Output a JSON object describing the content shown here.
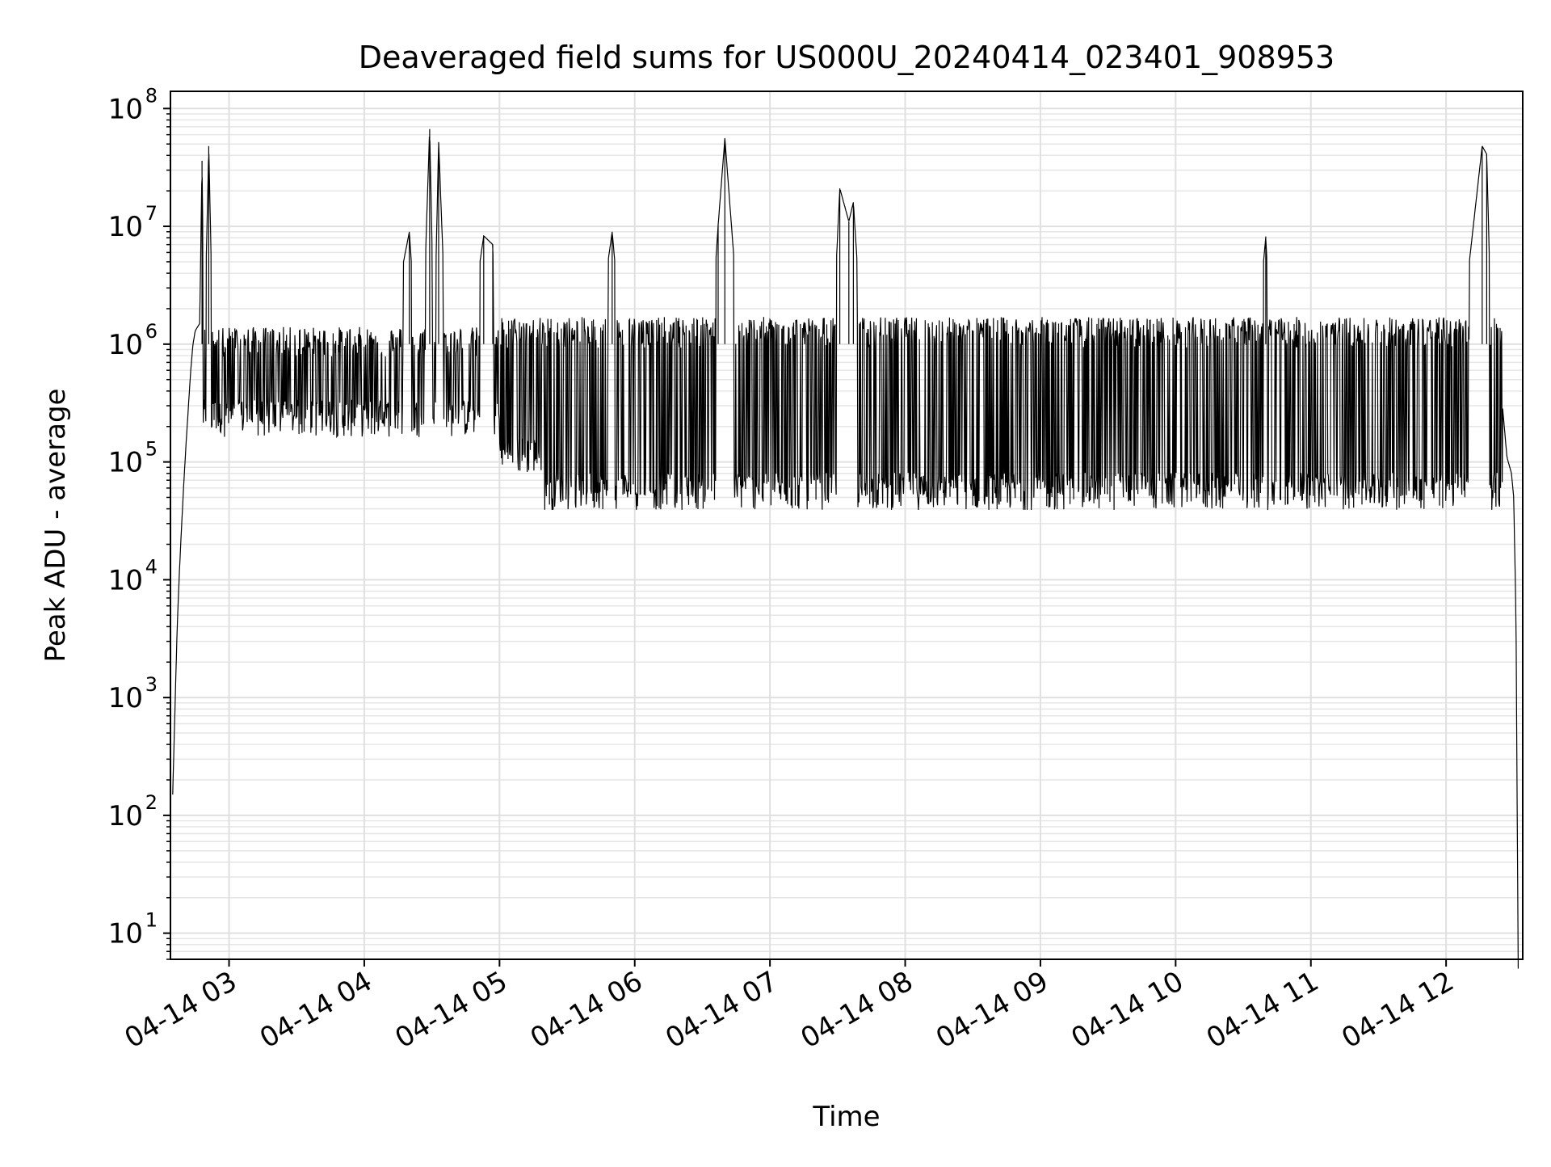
{
  "chart_data": {
    "type": "line",
    "title": "Deaveraged field sums for US000U_20240414_023401_908953",
    "xlabel": "Time",
    "ylabel": "Peak ADU - average",
    "yscale": "log",
    "ylim": [
      6,
      140000000
    ],
    "xlim": [
      "2024-04-14 02:34",
      "2024-04-14 12:34"
    ],
    "grid": true,
    "x_tick_labels": [
      "04-14 03",
      "04-14 04",
      "04-14 05",
      "04-14 06",
      "04-14 07",
      "04-14 08",
      "04-14 09",
      "04-14 10",
      "04-14 11",
      "04-14 12"
    ],
    "y_tick_labels": [
      {
        "base": "10",
        "exp": "1"
      },
      {
        "base": "10",
        "exp": "2"
      },
      {
        "base": "10",
        "exp": "3"
      },
      {
        "base": "10",
        "exp": "4"
      },
      {
        "base": "10",
        "exp": "5"
      },
      {
        "base": "10",
        "exp": "6"
      },
      {
        "base": "10",
        "exp": "7"
      },
      {
        "base": "10",
        "exp": "8"
      }
    ],
    "series": [
      {
        "color": "#000000",
        "points": [
          [
            "02:35",
            150
          ],
          [
            "02:36",
            800
          ],
          [
            "02:37",
            4000
          ],
          [
            "02:38",
            12000
          ],
          [
            "02:39",
            30000
          ],
          [
            "02:40",
            70000
          ],
          [
            "02:41",
            150000
          ],
          [
            "02:42",
            300000
          ],
          [
            "02:43",
            600000
          ],
          [
            "02:44",
            1000000
          ],
          [
            "02:45",
            1300000
          ],
          [
            "02:47",
            1500000
          ],
          [
            "02:48",
            36000000
          ],
          [
            "02:49",
            900000
          ],
          [
            "02:51",
            48000000
          ],
          [
            "02:53",
            700000
          ],
          [
            "02:57",
            900000
          ],
          [
            "03:00",
            300000
          ],
          [
            "03:05",
            2800000
          ],
          [
            "03:08",
            900000
          ],
          [
            "03:15",
            500000
          ],
          [
            "03:25",
            800000
          ],
          [
            "03:35",
            1900000
          ],
          [
            "03:45",
            600000
          ],
          [
            "03:55",
            400000
          ],
          [
            "04:05",
            300000
          ],
          [
            "04:20",
            9000000
          ],
          [
            "04:25",
            300000
          ],
          [
            "04:29",
            67000000
          ],
          [
            "04:31",
            1000000
          ],
          [
            "04:33",
            52000000
          ],
          [
            "04:38",
            150000
          ],
          [
            "04:45",
            600000
          ],
          [
            "04:48",
            1800000
          ],
          [
            "04:53",
            8300000
          ],
          [
            "04:57",
            7000000
          ],
          [
            "05:00",
            90000
          ],
          [
            "05:10",
            65000
          ],
          [
            "05:20",
            1000000
          ],
          [
            "05:25",
            50000
          ],
          [
            "05:35",
            80000
          ],
          [
            "05:50",
            9000000
          ],
          [
            "06:00",
            60000
          ],
          [
            "06:15",
            75000
          ],
          [
            "06:30",
            80000
          ],
          [
            "06:37",
            10200000
          ],
          [
            "06:40",
            56000000
          ],
          [
            "06:45",
            3000000
          ],
          [
            "06:55",
            70000
          ],
          [
            "07:10",
            60000
          ],
          [
            "07:25",
            80000
          ],
          [
            "07:31",
            21000000
          ],
          [
            "07:35",
            11000000
          ],
          [
            "07:37",
            16000000
          ],
          [
            "07:45",
            60000
          ],
          [
            "08:00",
            50000
          ],
          [
            "08:15",
            40000
          ],
          [
            "08:30",
            50000
          ],
          [
            "08:45",
            45000
          ],
          [
            "09:00",
            45000
          ],
          [
            "09:15",
            50000
          ],
          [
            "09:30",
            60000
          ],
          [
            "09:45",
            55000
          ],
          [
            "10:00",
            50000
          ],
          [
            "10:15",
            55000
          ],
          [
            "10:30",
            60000
          ],
          [
            "10:40",
            8200000
          ],
          [
            "10:45",
            60000
          ],
          [
            "11:00",
            65000
          ],
          [
            "11:15",
            70000
          ],
          [
            "11:30",
            80000
          ],
          [
            "11:45",
            200000
          ],
          [
            "12:05",
            600000
          ],
          [
            "12:16",
            48000000
          ],
          [
            "12:18",
            41000000
          ],
          [
            "12:20",
            1400000
          ],
          [
            "12:22",
            900000
          ],
          [
            "12:25",
            300000
          ],
          [
            "12:27",
            110000
          ],
          [
            "12:29",
            80000
          ],
          [
            "12:30",
            50000
          ],
          [
            "12:31",
            5000
          ],
          [
            "12:32",
            5
          ]
        ]
      }
    ]
  }
}
